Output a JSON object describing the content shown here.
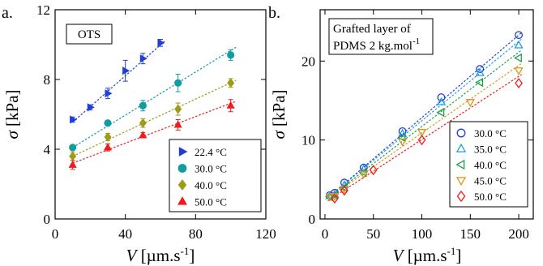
{
  "chart_data": [
    {
      "type": "scatter",
      "panel_label": "a.",
      "annotation": "OTS",
      "xlim": [
        0,
        120
      ],
      "ylim": [
        0,
        12
      ],
      "xticks": [
        0,
        40,
        80,
        120
      ],
      "yticks": [
        0,
        4,
        8,
        12
      ],
      "ylabel": {
        "symbol": "σ",
        "unit": " [kPa]"
      },
      "xlabel": {
        "symbol": "V",
        "unit": " [µm.s",
        "exp": "-1",
        "close": "]"
      },
      "legend_position": "bottom-right",
      "series": [
        {
          "name": "22.4 °C",
          "marker": "triangle-right",
          "color": "#1f3fd6",
          "x": [
            10,
            20,
            30,
            40,
            50,
            60
          ],
          "y": [
            5.7,
            6.4,
            7.2,
            8.5,
            9.2,
            10.1
          ],
          "err": [
            0.15,
            0.15,
            0.3,
            0.6,
            0.3,
            0.2
          ],
          "fit": [
            [
              10,
              5.55
            ],
            [
              63,
              10.25
            ]
          ]
        },
        {
          "name": "30.0 °C",
          "marker": "circle",
          "color": "#119ca0",
          "x": [
            10,
            30,
            50,
            70,
            100
          ],
          "y": [
            4.1,
            5.5,
            6.5,
            7.8,
            9.4
          ],
          "err": [
            0.1,
            0.1,
            0.3,
            0.5,
            0.3
          ],
          "fit": [
            [
              10,
              4.1
            ],
            [
              103,
              9.85
            ]
          ]
        },
        {
          "name": "40.0 °C",
          "marker": "diamond",
          "color": "#9c9c16",
          "x": [
            10,
            30,
            50,
            70,
            100
          ],
          "y": [
            3.6,
            4.7,
            5.5,
            6.3,
            7.8
          ],
          "err": [
            0.25,
            0.2,
            0.25,
            0.35,
            0.25
          ],
          "fit": [
            [
              10,
              3.6
            ],
            [
              103,
              7.95
            ]
          ]
        },
        {
          "name": "50.0 °C",
          "marker": "triangle-up",
          "color": "#ee1c1c",
          "x": [
            10,
            30,
            50,
            70,
            100
          ],
          "y": [
            3.1,
            4.1,
            4.8,
            5.4,
            6.5
          ],
          "err": [
            0.25,
            0.2,
            0.15,
            0.3,
            0.35
          ],
          "fit": [
            [
              10,
              3.2
            ],
            [
              103,
              6.75
            ]
          ]
        }
      ]
    },
    {
      "type": "scatter",
      "panel_label": "b.",
      "annotation_lines": [
        "Grafted layer of",
        "PDMS 2 kg.mol"
      ],
      "annotation_exp": "-1",
      "xlim": [
        -5,
        215
      ],
      "ylim": [
        0,
        26.5
      ],
      "xticks": [
        0,
        50,
        100,
        150,
        200
      ],
      "yticks": [
        0,
        10,
        20
      ],
      "ylabel": {
        "symbol": "σ",
        "unit": " [kPa]"
      },
      "xlabel": {
        "symbol": "V",
        "unit": " [µm.s",
        "exp": "-1",
        "close": "]"
      },
      "legend_position": "bottom-right",
      "series": [
        {
          "name": "30.0 °C",
          "marker": "circle-open",
          "color": "#1f3fd6",
          "x": [
            5,
            10,
            20,
            40,
            80,
            120,
            160,
            200
          ],
          "y": [
            3.0,
            3.3,
            4.6,
            6.5,
            11.1,
            15.4,
            19.0,
            23.3
          ],
          "fit": [
            [
              3,
              2.7
            ],
            [
              203,
              23.6
            ]
          ]
        },
        {
          "name": "35.0 °C",
          "marker": "triangle-up-open",
          "color": "#1f9fe0",
          "x": [
            5,
            10,
            20,
            40,
            80,
            120,
            160,
            200
          ],
          "y": [
            2.9,
            3.1,
            4.3,
            6.3,
            10.8,
            14.8,
            18.5,
            22.0
          ],
          "fit": [
            [
              3,
              2.7
            ],
            [
              203,
              22.8
            ]
          ]
        },
        {
          "name": "40.0 °C",
          "marker": "triangle-left-open",
          "color": "#1f9e4a",
          "x": [
            5,
            10,
            20,
            40,
            80,
            120,
            160,
            200
          ],
          "y": [
            2.8,
            3.0,
            4.0,
            5.9,
            10.3,
            13.5,
            17.3,
            20.4
          ],
          "fit": [
            [
              3,
              2.6
            ],
            [
              203,
              21.4
            ]
          ]
        },
        {
          "name": "45.0 °C",
          "marker": "triangle-down-open",
          "color": "#d9961a",
          "x": [
            5,
            10,
            20,
            40,
            80,
            100,
            150,
            200
          ],
          "y": [
            2.8,
            2.9,
            3.8,
            5.7,
            9.8,
            11.0,
            14.8,
            18.8
          ],
          "fit": [
            [
              3,
              2.6
            ],
            [
              203,
              19.7
            ]
          ]
        },
        {
          "name": "50.0 °C",
          "marker": "diamond-open",
          "color": "#ee1c1c",
          "x": [
            10,
            20,
            50,
            100,
            200
          ],
          "y": [
            2.6,
            3.6,
            6.2,
            10.0,
            17.2
          ],
          "fit": [
            [
              3,
              2.3
            ],
            [
              203,
              18.3
            ]
          ]
        }
      ]
    }
  ]
}
